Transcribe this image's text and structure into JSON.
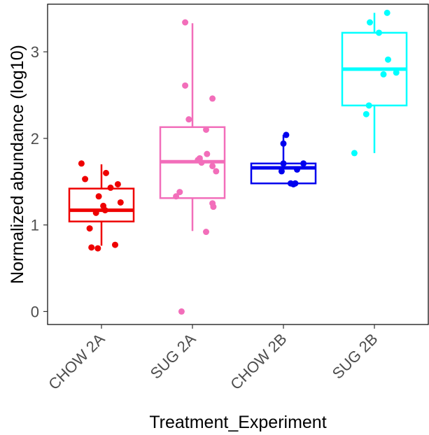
{
  "chart_data": {
    "type": "box",
    "xlabel": "Treatment_Experiment",
    "ylabel": "Normalized abundance (log10)",
    "ylim": [
      -0.15,
      3.55
    ],
    "yticks": [
      0,
      1,
      2,
      3
    ],
    "grid": false,
    "categories": [
      "CHOW 2A",
      "SUG 2A",
      "CHOW 2B",
      "SUG 2B"
    ],
    "series": [
      {
        "category": "CHOW 2A",
        "color": "#ee0000",
        "box": {
          "whisker_low": 0.76,
          "q1": 1.04,
          "median": 1.17,
          "q3": 1.42,
          "whisker_high": 1.7
        },
        "points": [
          [
            -0.22,
            1.71
          ],
          [
            0.05,
            1.6
          ],
          [
            -0.18,
            1.53
          ],
          [
            0.18,
            1.47
          ],
          [
            0.1,
            1.43
          ],
          [
            -0.03,
            1.33
          ],
          [
            0.02,
            1.22
          ],
          [
            0.21,
            1.26
          ],
          [
            -0.06,
            1.14
          ],
          [
            0.04,
            1.17
          ],
          [
            -0.13,
            0.96
          ],
          [
            -0.11,
            0.74
          ],
          [
            -0.04,
            0.73
          ],
          [
            0.15,
            0.77
          ]
        ]
      },
      {
        "category": "SUG 2A",
        "color": "#f26eba",
        "box": {
          "whisker_low": 0.93,
          "q1": 1.31,
          "median": 1.73,
          "q3": 2.13,
          "whisker_high": 3.33
        },
        "points": [
          [
            -0.08,
            3.34
          ],
          [
            -0.08,
            2.61
          ],
          [
            0.22,
            2.46
          ],
          [
            -0.04,
            2.22
          ],
          [
            0.15,
            2.1
          ],
          [
            0.16,
            1.82
          ],
          [
            0.08,
            1.77
          ],
          [
            0.06,
            1.75
          ],
          [
            0.1,
            1.72
          ],
          [
            0.22,
            1.68
          ],
          [
            0.26,
            1.62
          ],
          [
            -0.14,
            1.38
          ],
          [
            -0.18,
            1.33
          ],
          [
            0.23,
            1.21
          ],
          [
            0.22,
            1.25
          ],
          [
            0.15,
            0.92
          ],
          [
            -0.12,
            0.0
          ]
        ]
      },
      {
        "category": "CHOW 2B",
        "color": "#0000ee",
        "box": {
          "whisker_low": 1.47,
          "q1": 1.48,
          "median": 1.66,
          "q3": 1.71,
          "whisker_high": 2.04
        },
        "points": [
          [
            0.03,
            2.04
          ],
          [
            0.0,
            1.94
          ],
          [
            0.0,
            1.71
          ],
          [
            0.22,
            1.71
          ],
          [
            0.15,
            1.64
          ],
          [
            -0.02,
            1.62
          ],
          [
            0.13,
            1.48
          ],
          [
            0.08,
            1.48
          ],
          [
            0.11,
            1.47
          ]
        ]
      },
      {
        "category": "SUG 2B",
        "color": "#00ffff",
        "box": {
          "whisker_low": 1.83,
          "q1": 2.38,
          "median": 2.8,
          "q3": 3.22,
          "whisker_high": 3.45
        },
        "points": [
          [
            0.14,
            3.45
          ],
          [
            -0.05,
            3.34
          ],
          [
            0.05,
            3.22
          ],
          [
            0.15,
            2.91
          ],
          [
            0.24,
            2.76
          ],
          [
            0.1,
            2.74
          ],
          [
            -0.06,
            2.38
          ],
          [
            -0.09,
            2.28
          ],
          [
            -0.22,
            1.83
          ]
        ]
      }
    ]
  }
}
